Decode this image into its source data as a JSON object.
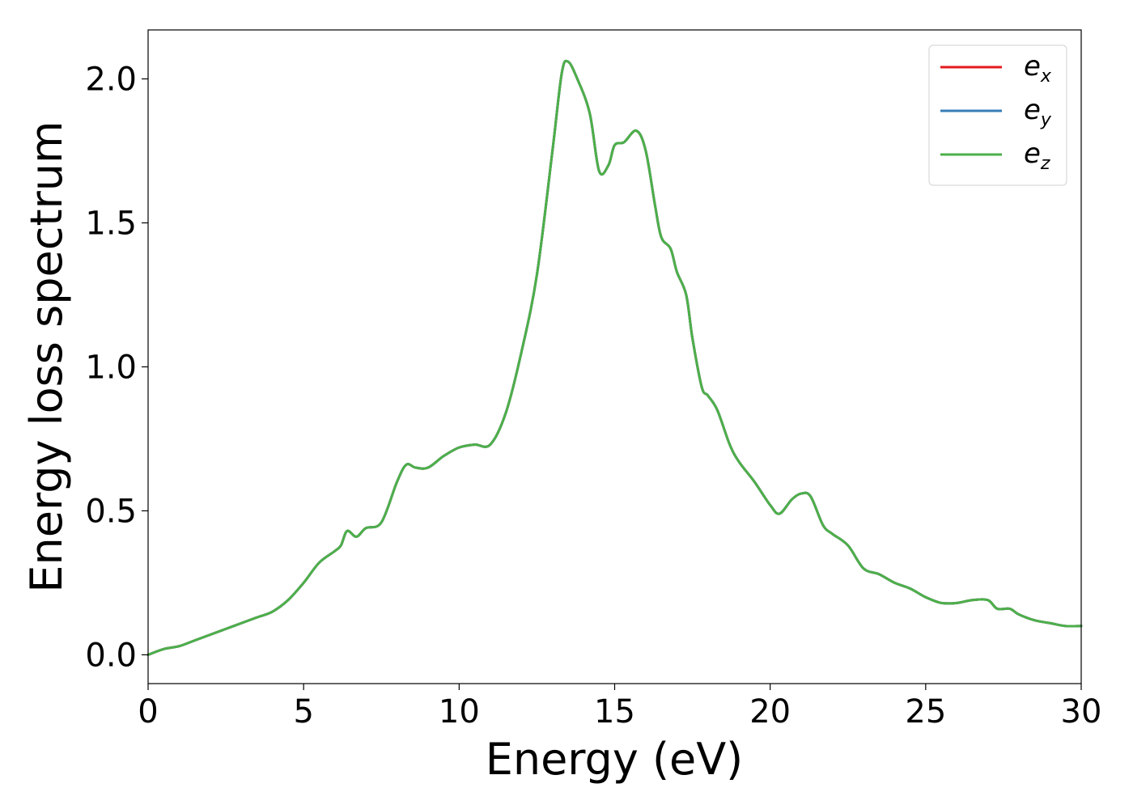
{
  "chart_data": {
    "type": "line",
    "xlabel": "Energy (eV)",
    "ylabel": "Energy loss spectrum",
    "xlim": [
      0,
      30
    ],
    "ylim": [
      -0.1,
      2.17
    ],
    "xticks": [
      0,
      5,
      10,
      15,
      20,
      25,
      30
    ],
    "yticks": [
      0.0,
      0.5,
      1.0,
      1.5,
      2.0
    ],
    "xtick_labels": [
      "0",
      "5",
      "10",
      "15",
      "20",
      "25",
      "30"
    ],
    "ytick_labels": [
      "0.0",
      "0.5",
      "1.0",
      "1.5",
      "2.0"
    ],
    "grid": false,
    "legend_position": "top-right",
    "x": [
      0,
      0.5,
      1.0,
      1.5,
      2.0,
      2.5,
      3.0,
      3.5,
      4.0,
      4.5,
      5.0,
      5.5,
      6.0,
      6.2,
      6.4,
      6.7,
      7.0,
      7.5,
      8.0,
      8.3,
      8.6,
      9.0,
      9.5,
      10.0,
      10.5,
      11.0,
      11.5,
      12.0,
      12.5,
      13.0,
      13.3,
      13.5,
      13.8,
      14.2,
      14.5,
      14.8,
      15.0,
      15.3,
      15.7,
      16.0,
      16.3,
      16.5,
      16.8,
      17.0,
      17.3,
      17.5,
      17.8,
      18.0,
      18.3,
      18.7,
      19.0,
      19.5,
      20.0,
      20.3,
      20.7,
      21.0,
      21.3,
      21.7,
      22.0,
      22.5,
      23.0,
      23.5,
      24.0,
      24.5,
      25.0,
      25.5,
      26.0,
      26.5,
      27.0,
      27.3,
      27.7,
      28.0,
      28.5,
      29.0,
      29.5,
      30.0
    ],
    "series": [
      {
        "name": "e_x",
        "color": "#e41a1c",
        "values": [
          0.0,
          0.02,
          0.03,
          0.05,
          0.07,
          0.09,
          0.11,
          0.13,
          0.15,
          0.19,
          0.25,
          0.32,
          0.36,
          0.38,
          0.43,
          0.41,
          0.44,
          0.46,
          0.6,
          0.66,
          0.65,
          0.65,
          0.69,
          0.72,
          0.73,
          0.73,
          0.84,
          1.05,
          1.32,
          1.75,
          2.02,
          2.06,
          2.0,
          1.88,
          1.68,
          1.7,
          1.77,
          1.78,
          1.82,
          1.75,
          1.56,
          1.45,
          1.41,
          1.33,
          1.25,
          1.1,
          0.93,
          0.9,
          0.85,
          0.73,
          0.67,
          0.6,
          0.52,
          0.49,
          0.54,
          0.56,
          0.55,
          0.45,
          0.42,
          0.38,
          0.3,
          0.28,
          0.25,
          0.23,
          0.2,
          0.18,
          0.18,
          0.19,
          0.19,
          0.16,
          0.16,
          0.14,
          0.12,
          0.11,
          0.1,
          0.1
        ]
      },
      {
        "name": "e_y",
        "color": "#377eb8",
        "values": [
          0.0,
          0.02,
          0.03,
          0.05,
          0.07,
          0.09,
          0.11,
          0.13,
          0.15,
          0.19,
          0.25,
          0.32,
          0.36,
          0.38,
          0.43,
          0.41,
          0.44,
          0.46,
          0.6,
          0.66,
          0.65,
          0.65,
          0.69,
          0.72,
          0.73,
          0.73,
          0.84,
          1.05,
          1.32,
          1.75,
          2.02,
          2.06,
          2.0,
          1.88,
          1.68,
          1.7,
          1.77,
          1.78,
          1.82,
          1.75,
          1.56,
          1.45,
          1.41,
          1.33,
          1.25,
          1.1,
          0.93,
          0.9,
          0.85,
          0.73,
          0.67,
          0.6,
          0.52,
          0.49,
          0.54,
          0.56,
          0.55,
          0.45,
          0.42,
          0.38,
          0.3,
          0.28,
          0.25,
          0.23,
          0.2,
          0.18,
          0.18,
          0.19,
          0.19,
          0.16,
          0.16,
          0.14,
          0.12,
          0.11,
          0.1,
          0.1
        ]
      },
      {
        "name": "e_z",
        "color": "#4daf4a",
        "values": [
          0.0,
          0.02,
          0.03,
          0.05,
          0.07,
          0.09,
          0.11,
          0.13,
          0.15,
          0.19,
          0.25,
          0.32,
          0.36,
          0.38,
          0.43,
          0.41,
          0.44,
          0.46,
          0.6,
          0.66,
          0.65,
          0.65,
          0.69,
          0.72,
          0.73,
          0.73,
          0.84,
          1.05,
          1.32,
          1.75,
          2.02,
          2.06,
          2.0,
          1.88,
          1.68,
          1.7,
          1.77,
          1.78,
          1.82,
          1.75,
          1.56,
          1.45,
          1.41,
          1.33,
          1.25,
          1.1,
          0.93,
          0.9,
          0.85,
          0.73,
          0.67,
          0.6,
          0.52,
          0.49,
          0.54,
          0.56,
          0.55,
          0.45,
          0.42,
          0.38,
          0.3,
          0.28,
          0.25,
          0.23,
          0.2,
          0.18,
          0.18,
          0.19,
          0.19,
          0.16,
          0.16,
          0.14,
          0.12,
          0.11,
          0.1,
          0.1
        ]
      }
    ],
    "legend": [
      {
        "base": "e",
        "sub": "x",
        "color": "#e41a1c"
      },
      {
        "base": "e",
        "sub": "y",
        "color": "#377eb8"
      },
      {
        "base": "e",
        "sub": "z",
        "color": "#4daf4a"
      }
    ]
  }
}
